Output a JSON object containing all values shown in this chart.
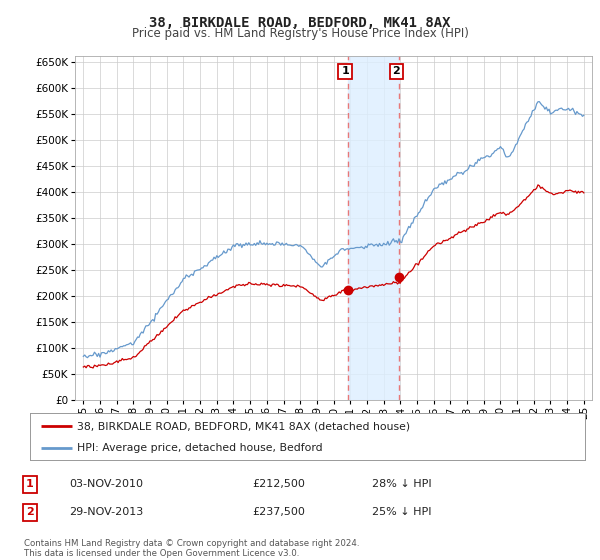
{
  "title": "38, BIRKDALE ROAD, BEDFORD, MK41 8AX",
  "subtitle": "Price paid vs. HM Land Registry's House Price Index (HPI)",
  "background_color": "#ffffff",
  "plot_bg_color": "#ffffff",
  "grid_color": "#cccccc",
  "ylim": [
    0,
    662000
  ],
  "yticks": [
    0,
    50000,
    100000,
    150000,
    200000,
    250000,
    300000,
    350000,
    400000,
    450000,
    500000,
    550000,
    600000,
    650000
  ],
  "xlabel_years_2digit": [
    "95",
    "96",
    "97",
    "98",
    "99",
    "00",
    "01",
    "02",
    "03",
    "04",
    "05",
    "06",
    "07",
    "08",
    "09",
    "10",
    "11",
    "12",
    "13",
    "14",
    "15",
    "16",
    "17",
    "18",
    "19",
    "20",
    "21",
    "22",
    "23",
    "24",
    "25"
  ],
  "xlabel_years_int": [
    1995,
    1996,
    1997,
    1998,
    1999,
    2000,
    2001,
    2002,
    2003,
    2004,
    2005,
    2006,
    2007,
    2008,
    2009,
    2010,
    2011,
    2012,
    2013,
    2014,
    2015,
    2016,
    2017,
    2018,
    2019,
    2020,
    2021,
    2022,
    2023,
    2024,
    2025
  ],
  "legend_label_red": "38, BIRKDALE ROAD, BEDFORD, MK41 8AX (detached house)",
  "legend_label_blue": "HPI: Average price, detached house, Bedford",
  "footnote": "Contains HM Land Registry data © Crown copyright and database right 2024.\nThis data is licensed under the Open Government Licence v3.0.",
  "sale1_label": "1",
  "sale1_date": "03-NOV-2010",
  "sale1_price": "£212,500",
  "sale1_hpi": "28% ↓ HPI",
  "sale1_year": 2010.84,
  "sale1_value": 212500,
  "sale2_label": "2",
  "sale2_date": "29-NOV-2013",
  "sale2_price": "£237,500",
  "sale2_hpi": "25% ↓ HPI",
  "sale2_year": 2013.91,
  "sale2_value": 237500,
  "red_color": "#cc0000",
  "blue_color": "#6699cc",
  "marker_color": "#cc0000",
  "highlight_color": "#ddeeff",
  "vline_color": "#e87878"
}
